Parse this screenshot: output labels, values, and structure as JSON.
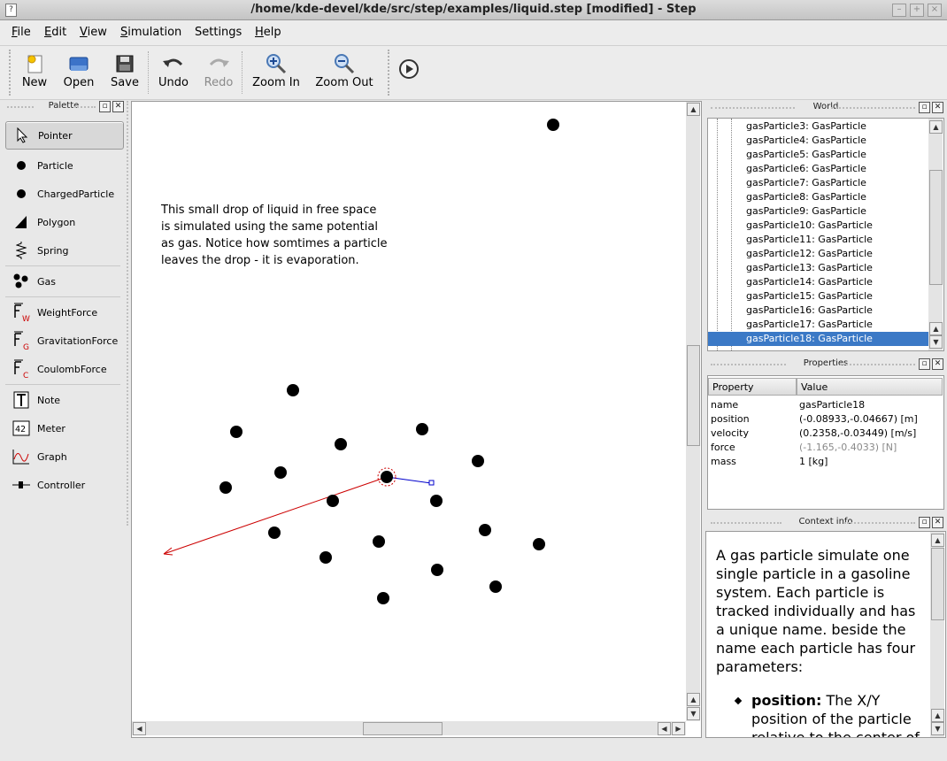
{
  "window": {
    "title": "/home/kde-devel/kde/src/step/examples/liquid.step [modified] - Step",
    "controls": [
      "–",
      "+",
      "×"
    ]
  },
  "menu": [
    {
      "label": "File",
      "accel": "F",
      "rest": "ile"
    },
    {
      "label": "Edit",
      "accel": "E",
      "rest": "dit"
    },
    {
      "label": "View",
      "accel": "V",
      "rest": "iew"
    },
    {
      "label": "Simulation",
      "accel": "S",
      "rest": "imulation"
    },
    {
      "label": "Settings",
      "accel": "S",
      "rest": "ettings",
      "pre": "",
      "mid": "e"
    },
    {
      "label": "Help",
      "accel": "H",
      "rest": "elp"
    }
  ],
  "toolbar": {
    "new": "New",
    "open": "Open",
    "save": "Save",
    "undo": "Undo",
    "redo": "Redo",
    "zoom_in": "Zoom In",
    "zoom_out": "Zoom Out"
  },
  "palette": {
    "title": "Palette",
    "items": [
      {
        "label": "Pointer",
        "icon": "pointer-icon",
        "selected": true
      },
      {
        "label": "Particle",
        "icon": "particle-icon"
      },
      {
        "label": "ChargedParticle",
        "icon": "charged-particle-icon"
      },
      {
        "label": "Polygon",
        "icon": "polygon-icon"
      },
      {
        "label": "Spring",
        "icon": "spring-icon"
      },
      {
        "label": "Gas",
        "icon": "gas-icon"
      },
      {
        "label": "WeightForce",
        "icon": "weight-force-icon"
      },
      {
        "label": "GravitationForce",
        "icon": "gravitation-force-icon"
      },
      {
        "label": "CoulombForce",
        "icon": "coulomb-force-icon"
      },
      {
        "label": "Note",
        "icon": "note-icon"
      },
      {
        "label": "Meter",
        "icon": "meter-icon"
      },
      {
        "label": "Graph",
        "icon": "graph-icon"
      },
      {
        "label": "Controller",
        "icon": "controller-icon"
      }
    ]
  },
  "canvas": {
    "note_lines": [
      "This small drop of liquid in free space",
      "is simulated using the same potential",
      "as gas. Notice how somtimes a particle",
      "leaves the drop - it is evaporation."
    ]
  },
  "world": {
    "title": "World",
    "items": [
      "gasParticle3: GasParticle",
      "gasParticle4: GasParticle",
      "gasParticle5: GasParticle",
      "gasParticle6: GasParticle",
      "gasParticle7: GasParticle",
      "gasParticle8: GasParticle",
      "gasParticle9: GasParticle",
      "gasParticle10: GasParticle",
      "gasParticle11: GasParticle",
      "gasParticle12: GasParticle",
      "gasParticle13: GasParticle",
      "gasParticle14: GasParticle",
      "gasParticle15: GasParticle",
      "gasParticle16: GasParticle",
      "gasParticle17: GasParticle",
      "gasParticle18: GasParticle"
    ],
    "selected_index": 15
  },
  "properties": {
    "title": "Properties",
    "headers": [
      "Property",
      "Value"
    ],
    "rows": [
      {
        "name": "name",
        "value": "gasParticle18"
      },
      {
        "name": "position",
        "value": "(-0.08933,-0.04667) [m]"
      },
      {
        "name": "velocity",
        "value": "(0.2358,-0.03449) [m/s]"
      },
      {
        "name": "force",
        "value": "(-1.165,-0.4033) [N]",
        "dim": true
      },
      {
        "name": "mass",
        "value": "1 [kg]"
      }
    ]
  },
  "context": {
    "title": "Context info",
    "text": "A gas particle simulate one single particle in a gasoline system. Each particle is tracked individually and has a unique name. beside the name each particle has four parameters:",
    "bullet_term": "position:",
    "bullet_text": " The X/Y position of the particle relative to the center of"
  },
  "colors": {
    "selection": "#3b79c6",
    "force_arrow": "#cc0000",
    "velocity_arrow": "#0000cc"
  }
}
